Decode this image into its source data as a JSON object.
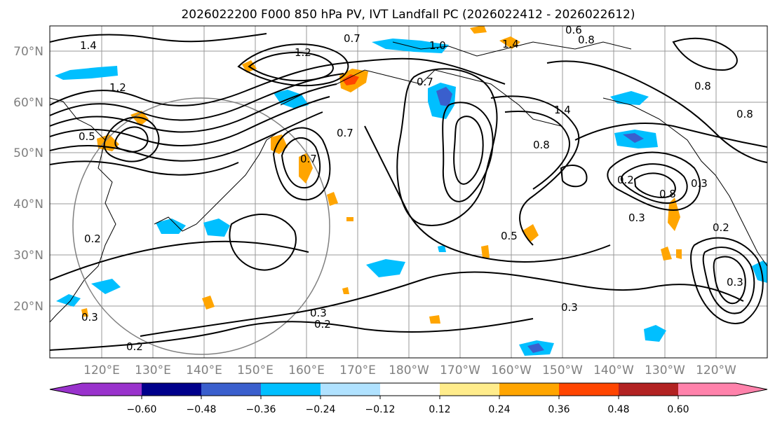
{
  "title": "2026022200 F000 850 hPa PV, IVT Landfall PC (2026022412 - 2026022612)",
  "lat_labels": [
    "70°N",
    "60°N",
    "50°N",
    "40°N",
    "30°N",
    "20°N"
  ],
  "lon_labels": [
    "120°E",
    "130°E",
    "140°E",
    "150°E",
    "160°E",
    "170°E",
    "180°W",
    "170°W",
    "160°W",
    "150°W",
    "140°W",
    "130°W",
    "120°W"
  ],
  "colorbar": {
    "ticks": [
      "−0.60",
      "−0.48",
      "−0.36",
      "−0.24",
      "−0.12",
      "0.12",
      "0.24",
      "0.36",
      "0.48",
      "0.60"
    ],
    "colors": [
      "#9932cc",
      "#00008b",
      "#3a5fcd",
      "#00bfff",
      "#b0e2ff",
      "#ffffff",
      "#ffec8b",
      "#ffa500",
      "#ff4500",
      "#b22222",
      "#ff82ab",
      "#ff82ab"
    ]
  },
  "contour_labels": [
    "1.4",
    "1.2",
    "0.7",
    "1.0",
    "0.8",
    "0.6",
    "0.8",
    "0.7",
    "1.2",
    "1.4",
    "0.8",
    "1.4",
    "0.8",
    "0.5",
    "0.2",
    "0.7",
    "0.7",
    "0.3",
    "0.5",
    "0.2",
    "0.3",
    "0.8",
    "0.3",
    "0.2",
    "0.3",
    "0.2",
    "0.3",
    "0.3",
    "0.2"
  ]
}
